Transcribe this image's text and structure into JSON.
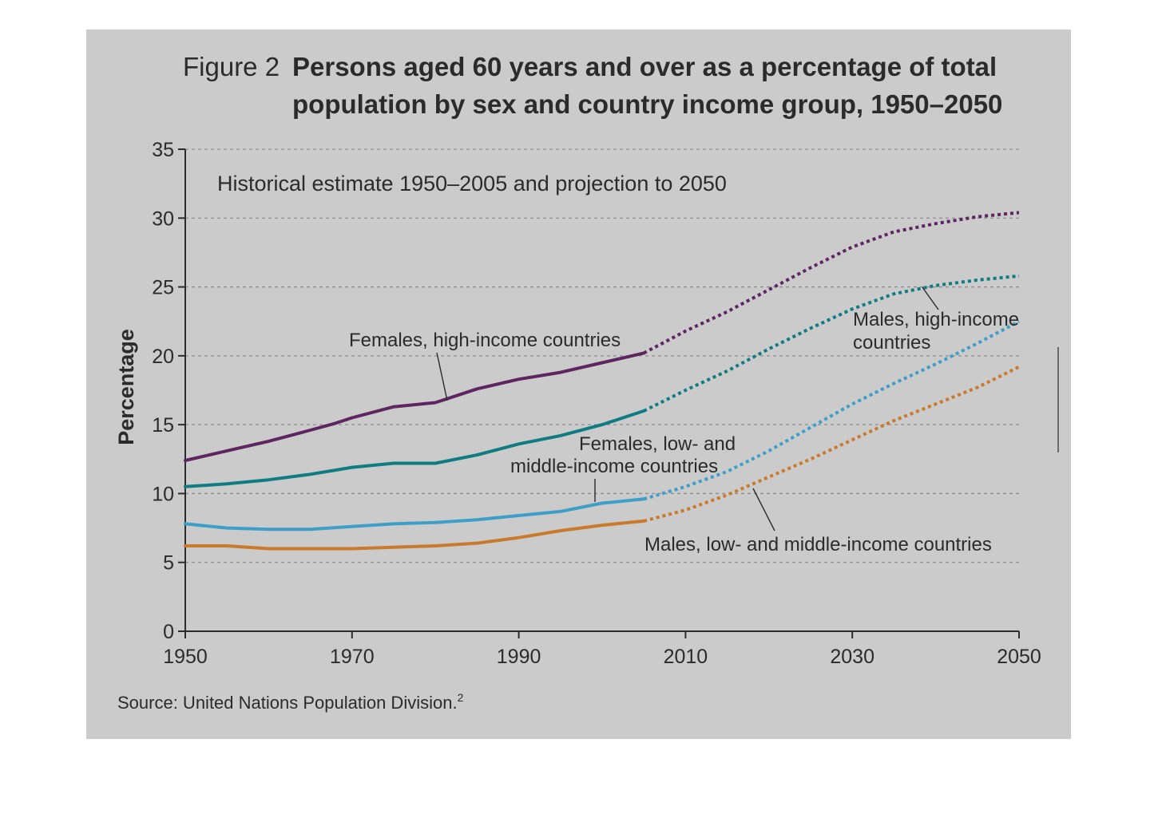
{
  "figure": {
    "label": "Figure 2",
    "title_line1": "Persons aged 60 years and over as a percentage of total",
    "title_line2": "population by sex and country income group, 1950–2050",
    "subtitle": "Historical estimate 1950–2005 and projection to 2050",
    "source_text": "Source: United Nations Population Division.",
    "source_sup": "2"
  },
  "chart_data": {
    "type": "line",
    "title": "Persons aged 60 years and over as a percentage of total population by sex and country income group, 1950–2050",
    "subtitle": "Historical estimate 1950–2005 and projection to 2050",
    "ylabel": "Percentage",
    "xlabel": "",
    "xlim": [
      1950,
      2050
    ],
    "ylim": [
      0,
      35
    ],
    "xticks": [
      1950,
      1970,
      1990,
      2010,
      2030,
      2050
    ],
    "yticks": [
      0,
      5,
      10,
      15,
      20,
      25,
      30,
      35
    ],
    "grid": "horizontal dashed",
    "historical_end": 2005,
    "series": [
      {
        "name": "Females, high-income countries",
        "color": "#5e2660",
        "x": [
          1950,
          1955,
          1960,
          1965,
          1968,
          1970,
          1975,
          1980,
          1985,
          1990,
          1995,
          2000,
          2005,
          2010,
          2015,
          2020,
          2025,
          2030,
          2035,
          2040,
          2045,
          2050
        ],
        "y": [
          12.4,
          13.1,
          13.8,
          14.6,
          15.1,
          15.5,
          16.3,
          16.6,
          17.6,
          18.3,
          18.8,
          19.5,
          20.2,
          21.8,
          23.2,
          24.8,
          26.4,
          27.9,
          29.0,
          29.6,
          30.1,
          30.4
        ]
      },
      {
        "name": "Males, high-income countries",
        "color": "#0f7c82",
        "x": [
          1950,
          1955,
          1960,
          1965,
          1968,
          1970,
          1975,
          1980,
          1985,
          1990,
          1995,
          2000,
          2005,
          2010,
          2015,
          2020,
          2025,
          2030,
          2035,
          2040,
          2045,
          2050
        ],
        "y": [
          10.5,
          10.7,
          11.0,
          11.4,
          11.7,
          11.9,
          12.2,
          12.2,
          12.8,
          13.6,
          14.2,
          15.0,
          16.0,
          17.5,
          18.9,
          20.5,
          22.0,
          23.4,
          24.5,
          25.1,
          25.5,
          25.8
        ]
      },
      {
        "name": "Females, low- and middle-income countries",
        "color": "#3d9fc8",
        "x": [
          1950,
          1955,
          1960,
          1965,
          1970,
          1975,
          1980,
          1985,
          1990,
          1995,
          2000,
          2005,
          2010,
          2015,
          2020,
          2025,
          2030,
          2035,
          2040,
          2045,
          2050
        ],
        "y": [
          7.8,
          7.5,
          7.4,
          7.4,
          7.6,
          7.8,
          7.9,
          8.1,
          8.4,
          8.7,
          9.3,
          9.6,
          10.5,
          11.6,
          13.1,
          14.8,
          16.5,
          18.0,
          19.4,
          20.9,
          22.5
        ]
      },
      {
        "name": "Males, low- and middle-income countries",
        "color": "#c97a2c",
        "x": [
          1950,
          1955,
          1960,
          1965,
          1970,
          1975,
          1980,
          1985,
          1990,
          1995,
          2000,
          2005,
          2010,
          2015,
          2020,
          2025,
          2030,
          2035,
          2040,
          2045,
          2050
        ],
        "y": [
          6.2,
          6.2,
          6.0,
          6.0,
          6.0,
          6.1,
          6.2,
          6.4,
          6.8,
          7.3,
          7.7,
          8.0,
          8.8,
          9.9,
          11.2,
          12.5,
          13.9,
          15.3,
          16.5,
          17.7,
          19.2
        ]
      }
    ],
    "annotations": [
      {
        "lines": [
          "Females, high-income countries"
        ],
        "series": 0
      },
      {
        "lines": [
          "Males, high-income",
          "countries"
        ],
        "series": 1
      },
      {
        "lines": [
          "Females, low- and",
          "middle-income countries"
        ],
        "series": 2
      },
      {
        "lines": [
          "Males, low- and middle-income countries"
        ],
        "series": 3
      }
    ]
  }
}
